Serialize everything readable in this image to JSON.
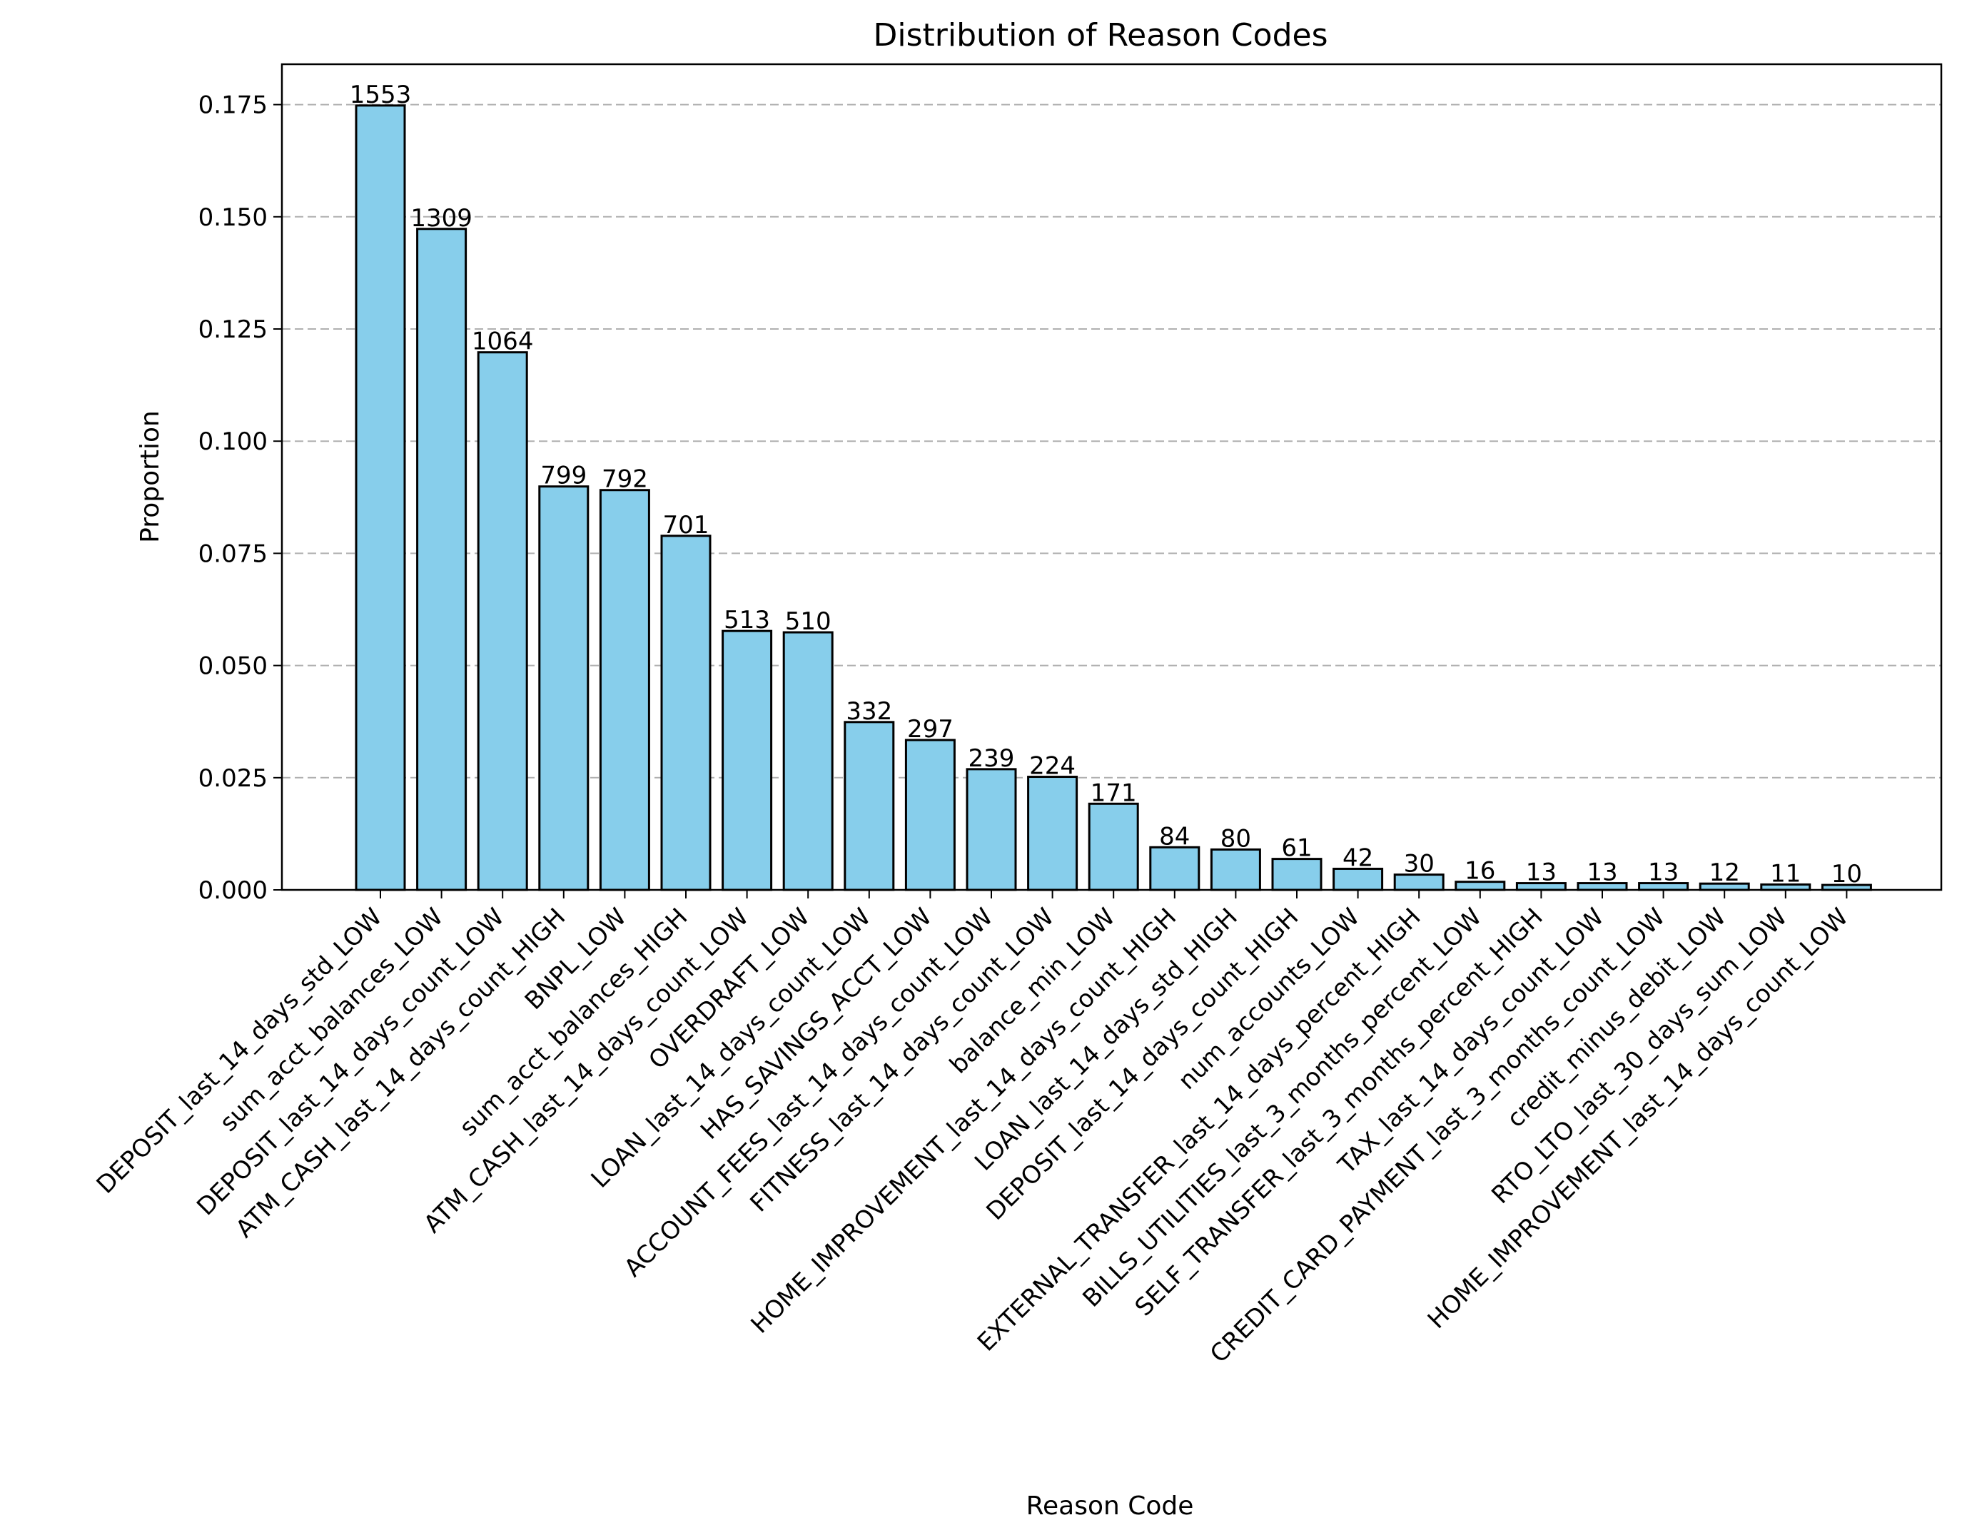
{
  "chart_data": {
    "type": "bar",
    "title": "Distribution of Reason Codes",
    "xlabel": "Reason Code",
    "ylabel": "Proportion",
    "ylim": [
      0,
      0.184
    ],
    "yticks": [
      "0.000",
      "0.025",
      "0.050",
      "0.075",
      "0.100",
      "0.125",
      "0.150",
      "0.175"
    ],
    "grid": "y-dashed",
    "bar_color": "#87CEEB",
    "edge_color": "#000000",
    "categories": [
      "DEPOSIT_last_14_days_std_LOW",
      "sum_acct_balances_LOW",
      "DEPOSIT_last_14_days_count_LOW",
      "ATM_CASH_last_14_days_count_HIGH",
      "BNPL_LOW",
      "sum_acct_balances_HIGH",
      "ATM_CASH_last_14_days_count_LOW",
      "OVERDRAFT_LOW",
      "LOAN_last_14_days_count_LOW",
      "HAS_SAVINGS_ACCT_LOW",
      "ACCOUNT_FEES_last_14_days_count_LOW",
      "FITNESS_last_14_days_count_LOW",
      "balance_min_LOW",
      "HOME_IMPROVEMENT_last_14_days_count_HIGH",
      "LOAN_last_14_days_std_HIGH",
      "DEPOSIT_last_14_days_count_HIGH",
      "num_accounts_LOW",
      "EXTERNAL_TRANSFER_last_14_days_percent_HIGH",
      "BILLS_UTILITIES_last_3_months_percent_LOW",
      "SELF_TRANSFER_last_3_months_percent_HIGH",
      "TAX_last_14_days_count_LOW",
      "CREDIT_CARD_PAYMENT_last_3_months_count_LOW",
      "credit_minus_debit_LOW",
      "RTO_LTO_last_30_days_sum_LOW",
      "HOME_IMPROVEMENT_last_14_days_count_LOW"
    ],
    "counts": [
      "1553",
      "1309",
      "1064",
      "799",
      "792",
      "701",
      "513",
      "510",
      "332",
      "297",
      "239",
      "224",
      "171",
      "84",
      "80",
      "61",
      "42",
      "30",
      "16",
      "13",
      "13",
      "13",
      "12",
      "11",
      "10"
    ],
    "values": [
      0.1748,
      0.1473,
      0.1198,
      0.0899,
      0.0891,
      0.0789,
      0.0577,
      0.0574,
      0.0374,
      0.0334,
      0.0269,
      0.0252,
      0.0192,
      0.0095,
      0.009,
      0.0069,
      0.0047,
      0.0034,
      0.0018,
      0.0015,
      0.0015,
      0.0015,
      0.0014,
      0.0012,
      0.0011
    ]
  }
}
